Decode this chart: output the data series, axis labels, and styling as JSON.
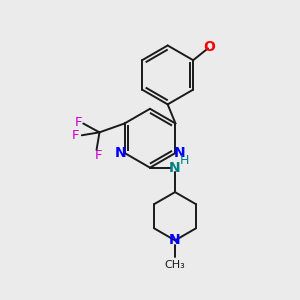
{
  "bg_color": "#ebebeb",
  "bond_color": "#1a1a1a",
  "N_color": "#0000ff",
  "O_color": "#ff0000",
  "F_color": "#cc00cc",
  "NH_color": "#008080",
  "line_width": 1.4,
  "fig_w": 3.0,
  "fig_h": 3.0,
  "dpi": 100,
  "xlim": [
    0,
    10
  ],
  "ylim": [
    0,
    10
  ]
}
